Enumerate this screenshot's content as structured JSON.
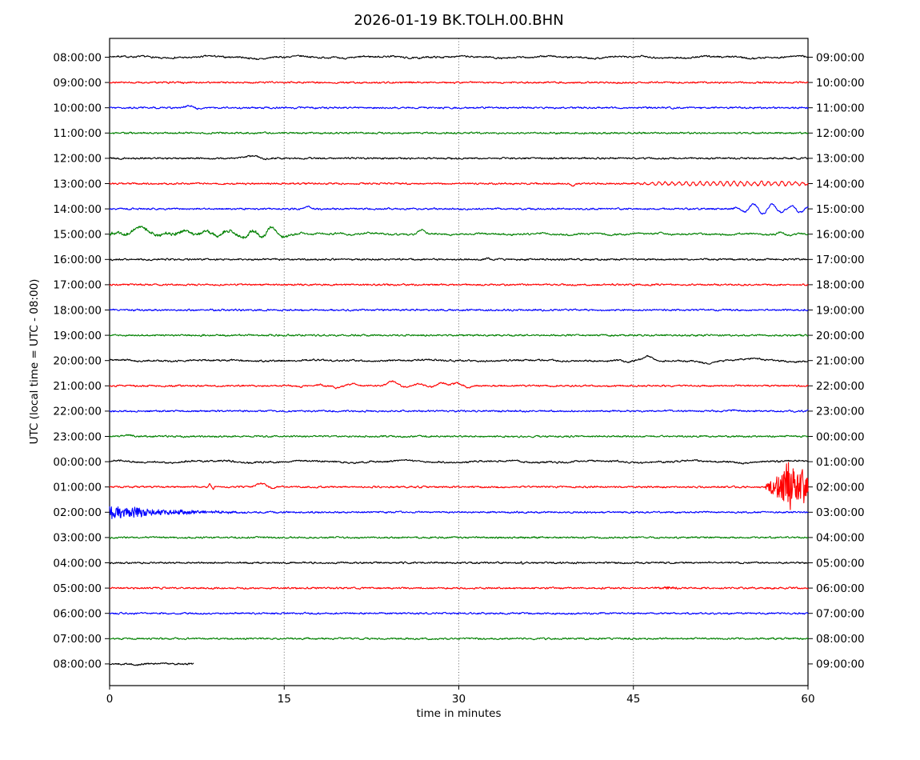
{
  "chart_data": {
    "type": "line",
    "title": "2026-01-19 BK.TOLH.00.BHN",
    "xlabel": "time in minutes",
    "ylabel": "UTC (local time = UTC - 08:00)",
    "xlim": [
      0,
      60
    ],
    "x_ticks": [
      0,
      15,
      30,
      45,
      60
    ],
    "grid_minutes": [
      15,
      30,
      45
    ],
    "grid_style": "dotted-vertical",
    "legend": "none",
    "colors_cycle": [
      "#000000",
      "#ff0000",
      "#0000ff",
      "#008000"
    ],
    "rows": [
      {
        "left": "08:00:00",
        "right": "09:00:00",
        "color": "#000000",
        "wobble": [
          1.0,
          7.2
        ],
        "events": [
          {
            "type": "bump",
            "t": 13.2,
            "a": -1.5,
            "w": 0.6
          },
          {
            "type": "bump",
            "t": 28.0,
            "a": 1.0,
            "w": 0.8
          }
        ]
      },
      {
        "left": "09:00:00",
        "right": "10:00:00",
        "color": "#ff0000",
        "events": []
      },
      {
        "left": "10:00:00",
        "right": "11:00:00",
        "color": "#0000ff",
        "events": [
          {
            "type": "bump",
            "t": 6.8,
            "a": 2.4,
            "w": 0.5
          },
          {
            "type": "bump",
            "t": 7.6,
            "a": -1.2,
            "w": 0.3
          }
        ]
      },
      {
        "left": "11:00:00",
        "right": "12:00:00",
        "color": "#008000",
        "events": []
      },
      {
        "left": "12:00:00",
        "right": "13:00:00",
        "color": "#000000",
        "events": [
          {
            "type": "bump",
            "t": 11.6,
            "a": 1.5,
            "w": 0.5
          },
          {
            "type": "bump",
            "t": 12.4,
            "a": 2.6,
            "w": 0.6
          },
          {
            "type": "bump",
            "t": 13.3,
            "a": -1.0,
            "w": 0.4
          }
        ]
      },
      {
        "left": "13:00:00",
        "right": "14:00:00",
        "color": "#ff0000",
        "events": [
          {
            "type": "bump",
            "t": 39.8,
            "a": -2.5,
            "w": 0.25
          },
          {
            "type": "sine",
            "f": 1.7,
            "env": [
              [
                43.5,
                0
              ],
              [
                47,
                1.6
              ],
              [
                50,
                2.4
              ],
              [
                53,
                2.6
              ],
              [
                55,
                2.2
              ],
              [
                58,
                2.3
              ],
              [
                60,
                1.6
              ]
            ]
          }
        ]
      },
      {
        "left": "14:00:00",
        "right": "15:00:00",
        "color": "#0000ff",
        "events": [
          {
            "type": "bump",
            "t": 17.1,
            "a": 2.2,
            "w": 0.35
          },
          {
            "type": "sine",
            "f": 0.62,
            "env": [
              [
                53.3,
                0
              ],
              [
                54.3,
                2.5
              ],
              [
                55.3,
                6.5
              ],
              [
                56.3,
                6.8
              ],
              [
                57.3,
                4.8
              ],
              [
                58.3,
                3.2
              ],
              [
                59.0,
                4.6
              ],
              [
                60,
                2.5
              ]
            ]
          }
        ]
      },
      {
        "left": "15:00:00",
        "right": "16:00:00",
        "color": "#008000",
        "wobble": [
          0.7,
          4.6
        ],
        "events": [
          {
            "type": "burst",
            "env": [
              [
                0,
                1.3
              ],
              [
                15,
                1.3
              ],
              [
                16.5,
                0
              ]
            ]
          },
          {
            "type": "bump",
            "t": 0.6,
            "a": 2.0,
            "w": 0.3
          },
          {
            "type": "bump",
            "t": 1.3,
            "a": -2.0,
            "w": 0.3
          },
          {
            "type": "bump",
            "t": 2.6,
            "a": 9.5,
            "w": 0.8
          },
          {
            "type": "bump",
            "t": 4.1,
            "a": -2.0,
            "w": 0.5
          },
          {
            "type": "bump",
            "t": 6.6,
            "a": 4.0,
            "w": 0.7
          },
          {
            "type": "bump",
            "t": 8.4,
            "a": 3.0,
            "w": 0.5
          },
          {
            "type": "bump",
            "t": 9.3,
            "a": -3.5,
            "w": 0.4
          },
          {
            "type": "bump",
            "t": 10.3,
            "a": 4.5,
            "w": 0.6
          },
          {
            "type": "bump",
            "t": 11.5,
            "a": -4.5,
            "w": 0.45
          },
          {
            "type": "bump",
            "t": 12.3,
            "a": 5.0,
            "w": 0.5
          },
          {
            "type": "bump",
            "t": 13.1,
            "a": -5.5,
            "w": 0.4
          },
          {
            "type": "bump",
            "t": 13.9,
            "a": 8.5,
            "w": 0.45
          },
          {
            "type": "bump",
            "t": 14.9,
            "a": -3.5,
            "w": 0.5
          },
          {
            "type": "bump",
            "t": 16.5,
            "a": 1.5,
            "w": 0.5
          },
          {
            "type": "bump",
            "t": 19.8,
            "a": 1.6,
            "w": 0.5
          },
          {
            "type": "bump",
            "t": 22.3,
            "a": 1.4,
            "w": 0.6
          },
          {
            "type": "bump",
            "t": 26.8,
            "a": 5.0,
            "w": 0.4
          },
          {
            "type": "bump",
            "t": 37.3,
            "a": 1.4,
            "w": 0.3
          },
          {
            "type": "bump",
            "t": 47.5,
            "a": 1.8,
            "w": 0.5
          },
          {
            "type": "bump",
            "t": 57.7,
            "a": 3.2,
            "w": 0.35
          },
          {
            "type": "bump",
            "t": 58.6,
            "a": -1.5,
            "w": 0.4
          }
        ]
      },
      {
        "left": "16:00:00",
        "right": "17:00:00",
        "color": "#000000",
        "events": [
          {
            "type": "bump",
            "t": 32.5,
            "a": 1.2,
            "w": 0.3
          }
        ]
      },
      {
        "left": "17:00:00",
        "right": "18:00:00",
        "color": "#ff0000",
        "events": []
      },
      {
        "left": "18:00:00",
        "right": "19:00:00",
        "color": "#0000ff",
        "events": []
      },
      {
        "left": "19:00:00",
        "right": "20:00:00",
        "color": "#008000",
        "events": []
      },
      {
        "left": "20:00:00",
        "right": "21:00:00",
        "color": "#000000",
        "wobble": [
          0.6,
          9.0
        ],
        "events": [
          {
            "type": "bump",
            "t": 44.5,
            "a": -2.8,
            "w": 0.5
          },
          {
            "type": "bump",
            "t": 46.2,
            "a": 5.5,
            "w": 0.55
          },
          {
            "type": "bump",
            "t": 47.3,
            "a": -1.5,
            "w": 0.5
          },
          {
            "type": "bump",
            "t": 51.4,
            "a": -3.8,
            "w": 0.8
          },
          {
            "type": "bump",
            "t": 55.5,
            "a": 2.0,
            "w": 1.2
          },
          {
            "type": "bump",
            "t": 58.8,
            "a": -1.2,
            "w": 0.8
          }
        ]
      },
      {
        "left": "21:00:00",
        "right": "22:00:00",
        "color": "#ff0000",
        "events": [
          {
            "type": "bump",
            "t": 16.4,
            "a": -1.2,
            "w": 0.35
          },
          {
            "type": "bump",
            "t": 18.0,
            "a": 1.8,
            "w": 0.3
          },
          {
            "type": "bump",
            "t": 19.6,
            "a": -2.5,
            "w": 0.4
          },
          {
            "type": "bump",
            "t": 20.9,
            "a": 2.8,
            "w": 0.45
          },
          {
            "type": "bump",
            "t": 24.3,
            "a": 6.0,
            "w": 0.55
          },
          {
            "type": "bump",
            "t": 25.3,
            "a": -2.0,
            "w": 0.4
          },
          {
            "type": "bump",
            "t": 26.6,
            "a": 2.5,
            "w": 0.45
          },
          {
            "type": "bump",
            "t": 27.6,
            "a": -1.5,
            "w": 0.35
          },
          {
            "type": "bump",
            "t": 28.6,
            "a": 3.8,
            "w": 0.5
          },
          {
            "type": "bump",
            "t": 29.8,
            "a": 3.5,
            "w": 0.5
          },
          {
            "type": "bump",
            "t": 30.8,
            "a": -2.0,
            "w": 0.4
          }
        ]
      },
      {
        "left": "22:00:00",
        "right": "23:00:00",
        "color": "#0000ff",
        "events": [
          {
            "type": "bump",
            "t": 53.8,
            "a": 1.5,
            "w": 0.5
          }
        ]
      },
      {
        "left": "23:00:00",
        "right": "00:00:00",
        "color": "#008000",
        "events": [
          {
            "type": "bump",
            "t": 1.5,
            "a": 1.8,
            "w": 0.5
          }
        ]
      },
      {
        "left": "00:00:00",
        "right": "01:00:00",
        "color": "#000000",
        "wobble": [
          1.1,
          8.3
        ],
        "events": []
      },
      {
        "left": "01:00:00",
        "right": "02:00:00",
        "color": "#ff0000",
        "events": [
          {
            "type": "bump",
            "t": 8.6,
            "a": 3.5,
            "w": 0.12
          },
          {
            "type": "bump",
            "t": 8.9,
            "a": -2.0,
            "w": 0.12
          },
          {
            "type": "bump",
            "t": 13.0,
            "a": 4.5,
            "w": 0.5
          },
          {
            "type": "bump",
            "t": 13.9,
            "a": -1.5,
            "w": 0.4
          },
          {
            "type": "burst",
            "env": [
              [
                56.2,
                0
              ],
              [
                56.7,
                8
              ],
              [
                57.2,
                12
              ],
              [
                57.8,
                16
              ],
              [
                58.1,
                28
              ],
              [
                58.6,
                30
              ],
              [
                59.0,
                20
              ],
              [
                59.4,
                25
              ],
              [
                60,
                18
              ]
            ]
          },
          {
            "type": "bump",
            "t": 58.35,
            "a": 14,
            "w": 0.08
          }
        ]
      },
      {
        "left": "02:00:00",
        "right": "03:00:00",
        "color": "#0000ff",
        "events": [
          {
            "type": "burst",
            "env": [
              [
                0,
                7.5
              ],
              [
                0.6,
                9
              ],
              [
                1.4,
                7
              ],
              [
                2.2,
                7.5
              ],
              [
                3.0,
                4.5
              ],
              [
                4.0,
                3.5
              ],
              [
                5.5,
                2.5
              ],
              [
                7.5,
                1.8
              ],
              [
                10,
                1.1
              ],
              [
                13,
                0
              ]
            ]
          }
        ]
      },
      {
        "left": "03:00:00",
        "right": "04:00:00",
        "color": "#008000",
        "events": []
      },
      {
        "left": "04:00:00",
        "right": "05:00:00",
        "color": "#000000",
        "events": [
          {
            "type": "bump",
            "t": 35.35,
            "a": 2.2,
            "w": 0.06
          },
          {
            "type": "bump",
            "t": 35.5,
            "a": -2.2,
            "w": 0.06
          }
        ]
      },
      {
        "left": "05:00:00",
        "right": "06:00:00",
        "color": "#ff0000",
        "events": [
          {
            "type": "burst",
            "env": [
              [
                46.8,
                0
              ],
              [
                47.4,
                1.4
              ],
              [
                48.6,
                1.4
              ],
              [
                49.2,
                0
              ]
            ]
          }
        ]
      },
      {
        "left": "06:00:00",
        "right": "07:00:00",
        "color": "#0000ff",
        "events": []
      },
      {
        "left": "07:00:00",
        "right": "08:00:00",
        "color": "#008000",
        "events": []
      },
      {
        "left": "08:00:00",
        "right": "09:00:00",
        "color": "#000000",
        "end_min": 7.2,
        "events": [
          {
            "type": "bump",
            "t": 2.3,
            "a": -1.2,
            "w": 0.4
          },
          {
            "type": "bump",
            "t": 4.5,
            "a": 0.8,
            "w": 0.5
          }
        ]
      }
    ]
  }
}
